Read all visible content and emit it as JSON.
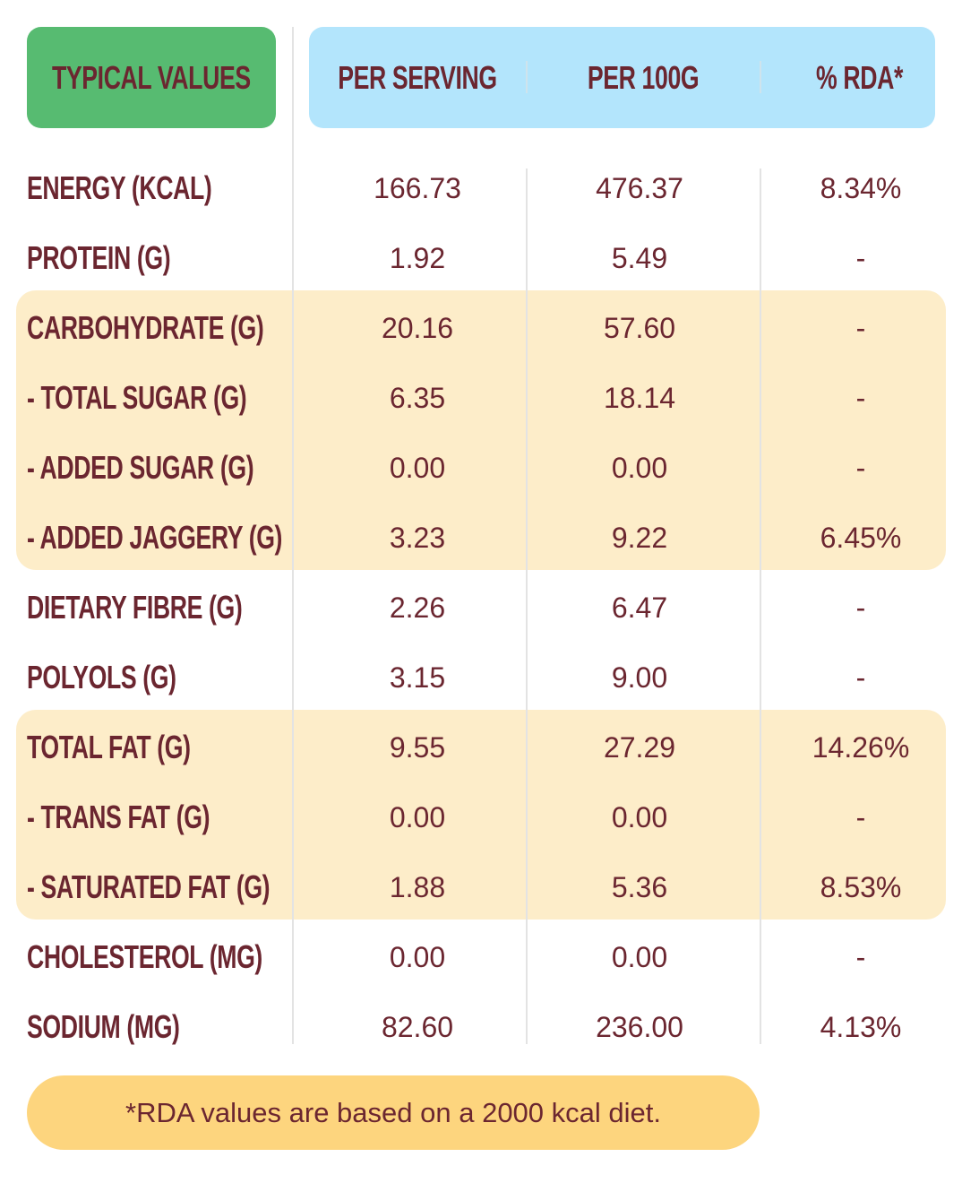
{
  "header": {
    "typical_values": "TYPICAL VALUES",
    "per_serving": "PER SERVING",
    "per_100g": "PER 100G",
    "rda": "% RDA*"
  },
  "rows": [
    {
      "label": "ENERGY (KCAL)",
      "per_serving": "166.73",
      "per_100g": "476.37",
      "rda": "8.34%",
      "highlight": false
    },
    {
      "label": "PROTEIN (G)",
      "per_serving": "1.92",
      "per_100g": "5.49",
      "rda": "-",
      "highlight": false
    },
    {
      "label": "CARBOHYDRATE (G)",
      "per_serving": "20.16",
      "per_100g": "57.60",
      "rda": "-",
      "highlight": true
    },
    {
      "label": "- TOTAL SUGAR (G)",
      "per_serving": "6.35",
      "per_100g": "18.14",
      "rda": "-",
      "highlight": true
    },
    {
      "label": "- ADDED SUGAR (G)",
      "per_serving": "0.00",
      "per_100g": "0.00",
      "rda": "-",
      "highlight": true
    },
    {
      "label": "- ADDED JAGGERY (G)",
      "per_serving": "3.23",
      "per_100g": "9.22",
      "rda": "6.45%",
      "highlight": true
    },
    {
      "label": "DIETARY FIBRE (G)",
      "per_serving": "2.26",
      "per_100g": "6.47",
      "rda": "-",
      "highlight": false
    },
    {
      "label": "POLYOLS (G)",
      "per_serving": "3.15",
      "per_100g": "9.00",
      "rda": "-",
      "highlight": false
    },
    {
      "label": "TOTAL FAT (G)",
      "per_serving": "9.55",
      "per_100g": "27.29",
      "rda": "14.26%",
      "highlight": true
    },
    {
      "label": "- TRANS FAT (G)",
      "per_serving": "0.00",
      "per_100g": "0.00",
      "rda": "-",
      "highlight": true
    },
    {
      "label": "- SATURATED FAT (G)",
      "per_serving": "1.88",
      "per_100g": "5.36",
      "rda": "8.53%",
      "highlight": true
    },
    {
      "label": "CHOLESTEROL (MG)",
      "per_serving": "0.00",
      "per_100g": "0.00",
      "rda": "-",
      "highlight": false
    },
    {
      "label": "SODIUM (MG)",
      "per_serving": "82.60",
      "per_100g": "236.00",
      "rda": "4.13%",
      "highlight": false
    }
  ],
  "footnote": "*RDA values are based on a 2000 kcal diet.",
  "colors": {
    "text": "#6b2630",
    "green": "#57bb71",
    "blue": "#b3e5fc",
    "highlight": "#fdedc9",
    "footnote_bg": "#fdd57e"
  }
}
